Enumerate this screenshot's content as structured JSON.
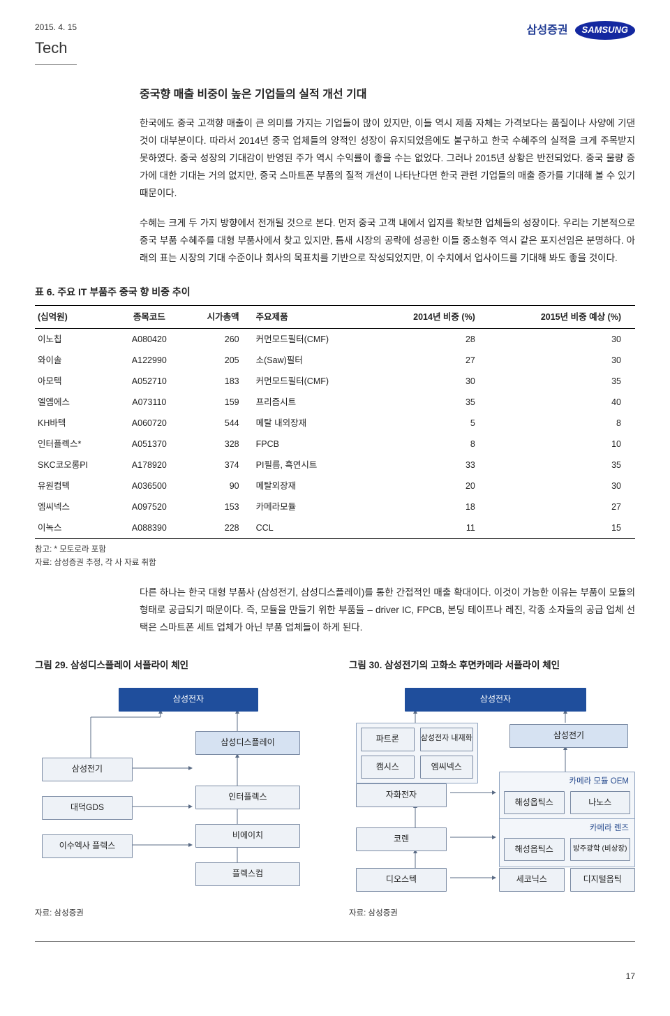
{
  "header": {
    "date": "2015. 4. 15",
    "category": "Tech",
    "brand_kr": "삼성증권",
    "brand_en": "SAMSUNG"
  },
  "section": {
    "title": "중국향 매출 비중이 높은 기업들의 실적 개선 기대",
    "para1": "한국에도 중국 고객향 매출이 큰 의미를 가지는 기업들이 많이 있지만, 이들 역시 제품 자체는 가격보다는 품질이나 사양에 기댄 것이 대부분이다. 따라서 2014년 중국 업체들의 양적인 성장이 유지되었음에도 불구하고 한국 수혜주의 실적을 크게 주목받지 못하였다. 중국 성장의 기대감이 반영된 주가 역시 수익률이 좋을 수는 없었다. 그러나 2015년 상황은 반전되었다. 중국 물량 증가에 대한 기대는 거의 없지만, 중국 스마트폰 부품의 질적 개선이 나타난다면 한국 관련 기업들의 매출 증가를 기대해 볼 수 있기 때문이다.",
    "para2": "수혜는 크게 두 가지 방향에서 전개될 것으로 본다. 먼저 중국 고객 내에서 입지를 확보한 업체들의 성장이다. 우리는 기본적으로 중국 부품 수혜주를 대형 부품사에서 찾고 있지만, 틈새 시장의 공략에 성공한 이들 중소형주 역시 같은 포지션임은 분명하다. 아래의 표는 시장의 기대 수준이나 회사의 목표치를 기반으로 작성되었지만, 이 수치에서 업사이드를 기대해 봐도 좋을 것이다."
  },
  "table6": {
    "title": "표 6. 주요 IT 부품주 중국 향 비중 추이",
    "columns": [
      "(십억원)",
      "종목코드",
      "시가총액",
      "주요제품",
      "2014년 비중 (%)",
      "2015년 비중 예상 (%)"
    ],
    "rows": [
      [
        "이노칩",
        "A080420",
        "260",
        "커먼모드필터(CMF)",
        "28",
        "30"
      ],
      [
        "와이솔",
        "A122990",
        "205",
        "소(Saw)필터",
        "27",
        "30"
      ],
      [
        "아모텍",
        "A052710",
        "183",
        "커먼모드필터(CMF)",
        "30",
        "35"
      ],
      [
        "엘엠에스",
        "A073110",
        "159",
        "프리즘시트",
        "35",
        "40"
      ],
      [
        "KH바텍",
        "A060720",
        "544",
        "메탈 내외장재",
        "5",
        "8"
      ],
      [
        "인터플렉스*",
        "A051370",
        "328",
        "FPCB",
        "8",
        "10"
      ],
      [
        "SKC코오롱PI",
        "A178920",
        "374",
        "PI필름, 흑연시트",
        "33",
        "35"
      ],
      [
        "유원컴텍",
        "A036500",
        "90",
        "메탈외장재",
        "20",
        "30"
      ],
      [
        "엠씨넥스",
        "A097520",
        "153",
        "카메라모듈",
        "18",
        "27"
      ],
      [
        "이녹스",
        "A088390",
        "228",
        "CCL",
        "11",
        "15"
      ]
    ],
    "note": "참고: * 모토로라 포함",
    "source": "자료: 삼성증권 추정, 각 사 자료 취합"
  },
  "para3": "다른 하나는 한국 대형 부품사 (삼성전기, 삼성디스플레이)를 통한 간접적인 매출 확대이다. 이것이 가능한 이유는 부품이 모듈의 형태로 공급되기 때문이다. 즉, 모듈을 만들기 위한 부품들 – driver IC, FPCB, 본딩 테이프나 레진, 각종 소자들의 공급 업체 선택은 스마트폰 세트 업체가 아닌 부품 업체들이 하게 된다.",
  "fig29": {
    "title": "그림 29. 삼성디스플레이 서플라이 체인",
    "top": "삼성전자",
    "left": [
      "삼성전기",
      "대덕GDS",
      "이수엑사 플렉스"
    ],
    "right": [
      "삼성디스플레이",
      "인터플렉스",
      "비에이치",
      "플렉스컴"
    ],
    "source": "자료: 삼성증권",
    "colors": {
      "top": "#1f4e9c",
      "box_bg": "#eef2f7",
      "box_border": "#7a8aa3"
    }
  },
  "fig30": {
    "title": "그림 30. 삼성전기의 고화소 후면카메라 서플라이 체인",
    "top": "삼성전자",
    "row1": [
      "파트론",
      "삼성전자 내재화"
    ],
    "row1b": [
      "캠시스",
      "엠씨넥스"
    ],
    "right_box": "삼성전기",
    "group1_title": "카메라 모듈 OEM",
    "group1_left": "자화전자",
    "group1": [
      "해성옵틱스",
      "나노스"
    ],
    "mid_left": "코렌",
    "group2_title": "카메라 렌즈",
    "group2": [
      "해성옵틱스",
      "방주광학 (비상장)"
    ],
    "bottom_left": "디오스텍",
    "bottom": [
      "세코닉스",
      "디지털옵틱"
    ],
    "source": "자료: 삼성증권"
  },
  "page": "17"
}
